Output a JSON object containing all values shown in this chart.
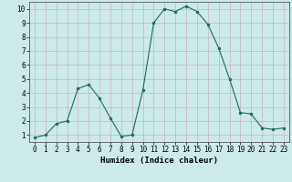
{
  "x": [
    0,
    1,
    2,
    3,
    4,
    5,
    6,
    7,
    8,
    9,
    10,
    11,
    12,
    13,
    14,
    15,
    16,
    17,
    18,
    19,
    20,
    21,
    22,
    23
  ],
  "y": [
    0.8,
    1.0,
    1.8,
    2.0,
    4.3,
    4.6,
    3.6,
    2.2,
    0.9,
    1.0,
    4.2,
    9.0,
    10.0,
    9.8,
    10.2,
    9.8,
    8.9,
    7.2,
    5.0,
    2.6,
    2.5,
    1.5,
    1.4,
    1.5
  ],
  "line_color": "#1a6b5a",
  "marker_color": "#1a6b5a",
  "bg_color": "#cdeaea",
  "grid_color": "#c8b4b4",
  "xlabel": "Humidex (Indice chaleur)",
  "ylim": [
    0.5,
    10.5
  ],
  "xlim": [
    -0.5,
    23.5
  ],
  "yticks": [
    1,
    2,
    3,
    4,
    5,
    6,
    7,
    8,
    9,
    10
  ],
  "xticks": [
    0,
    1,
    2,
    3,
    4,
    5,
    6,
    7,
    8,
    9,
    10,
    11,
    12,
    13,
    14,
    15,
    16,
    17,
    18,
    19,
    20,
    21,
    22,
    23
  ],
  "xtick_labels": [
    "0",
    "1",
    "2",
    "3",
    "4",
    "5",
    "6",
    "7",
    "8",
    "9",
    "10",
    "11",
    "12",
    "13",
    "14",
    "15",
    "16",
    "17",
    "18",
    "19",
    "20",
    "21",
    "22",
    "23"
  ],
  "ytick_labels": [
    "1",
    "2",
    "3",
    "4",
    "5",
    "6",
    "7",
    "8",
    "9",
    "10"
  ],
  "tick_fontsize": 5.5,
  "xlabel_fontsize": 6.5
}
